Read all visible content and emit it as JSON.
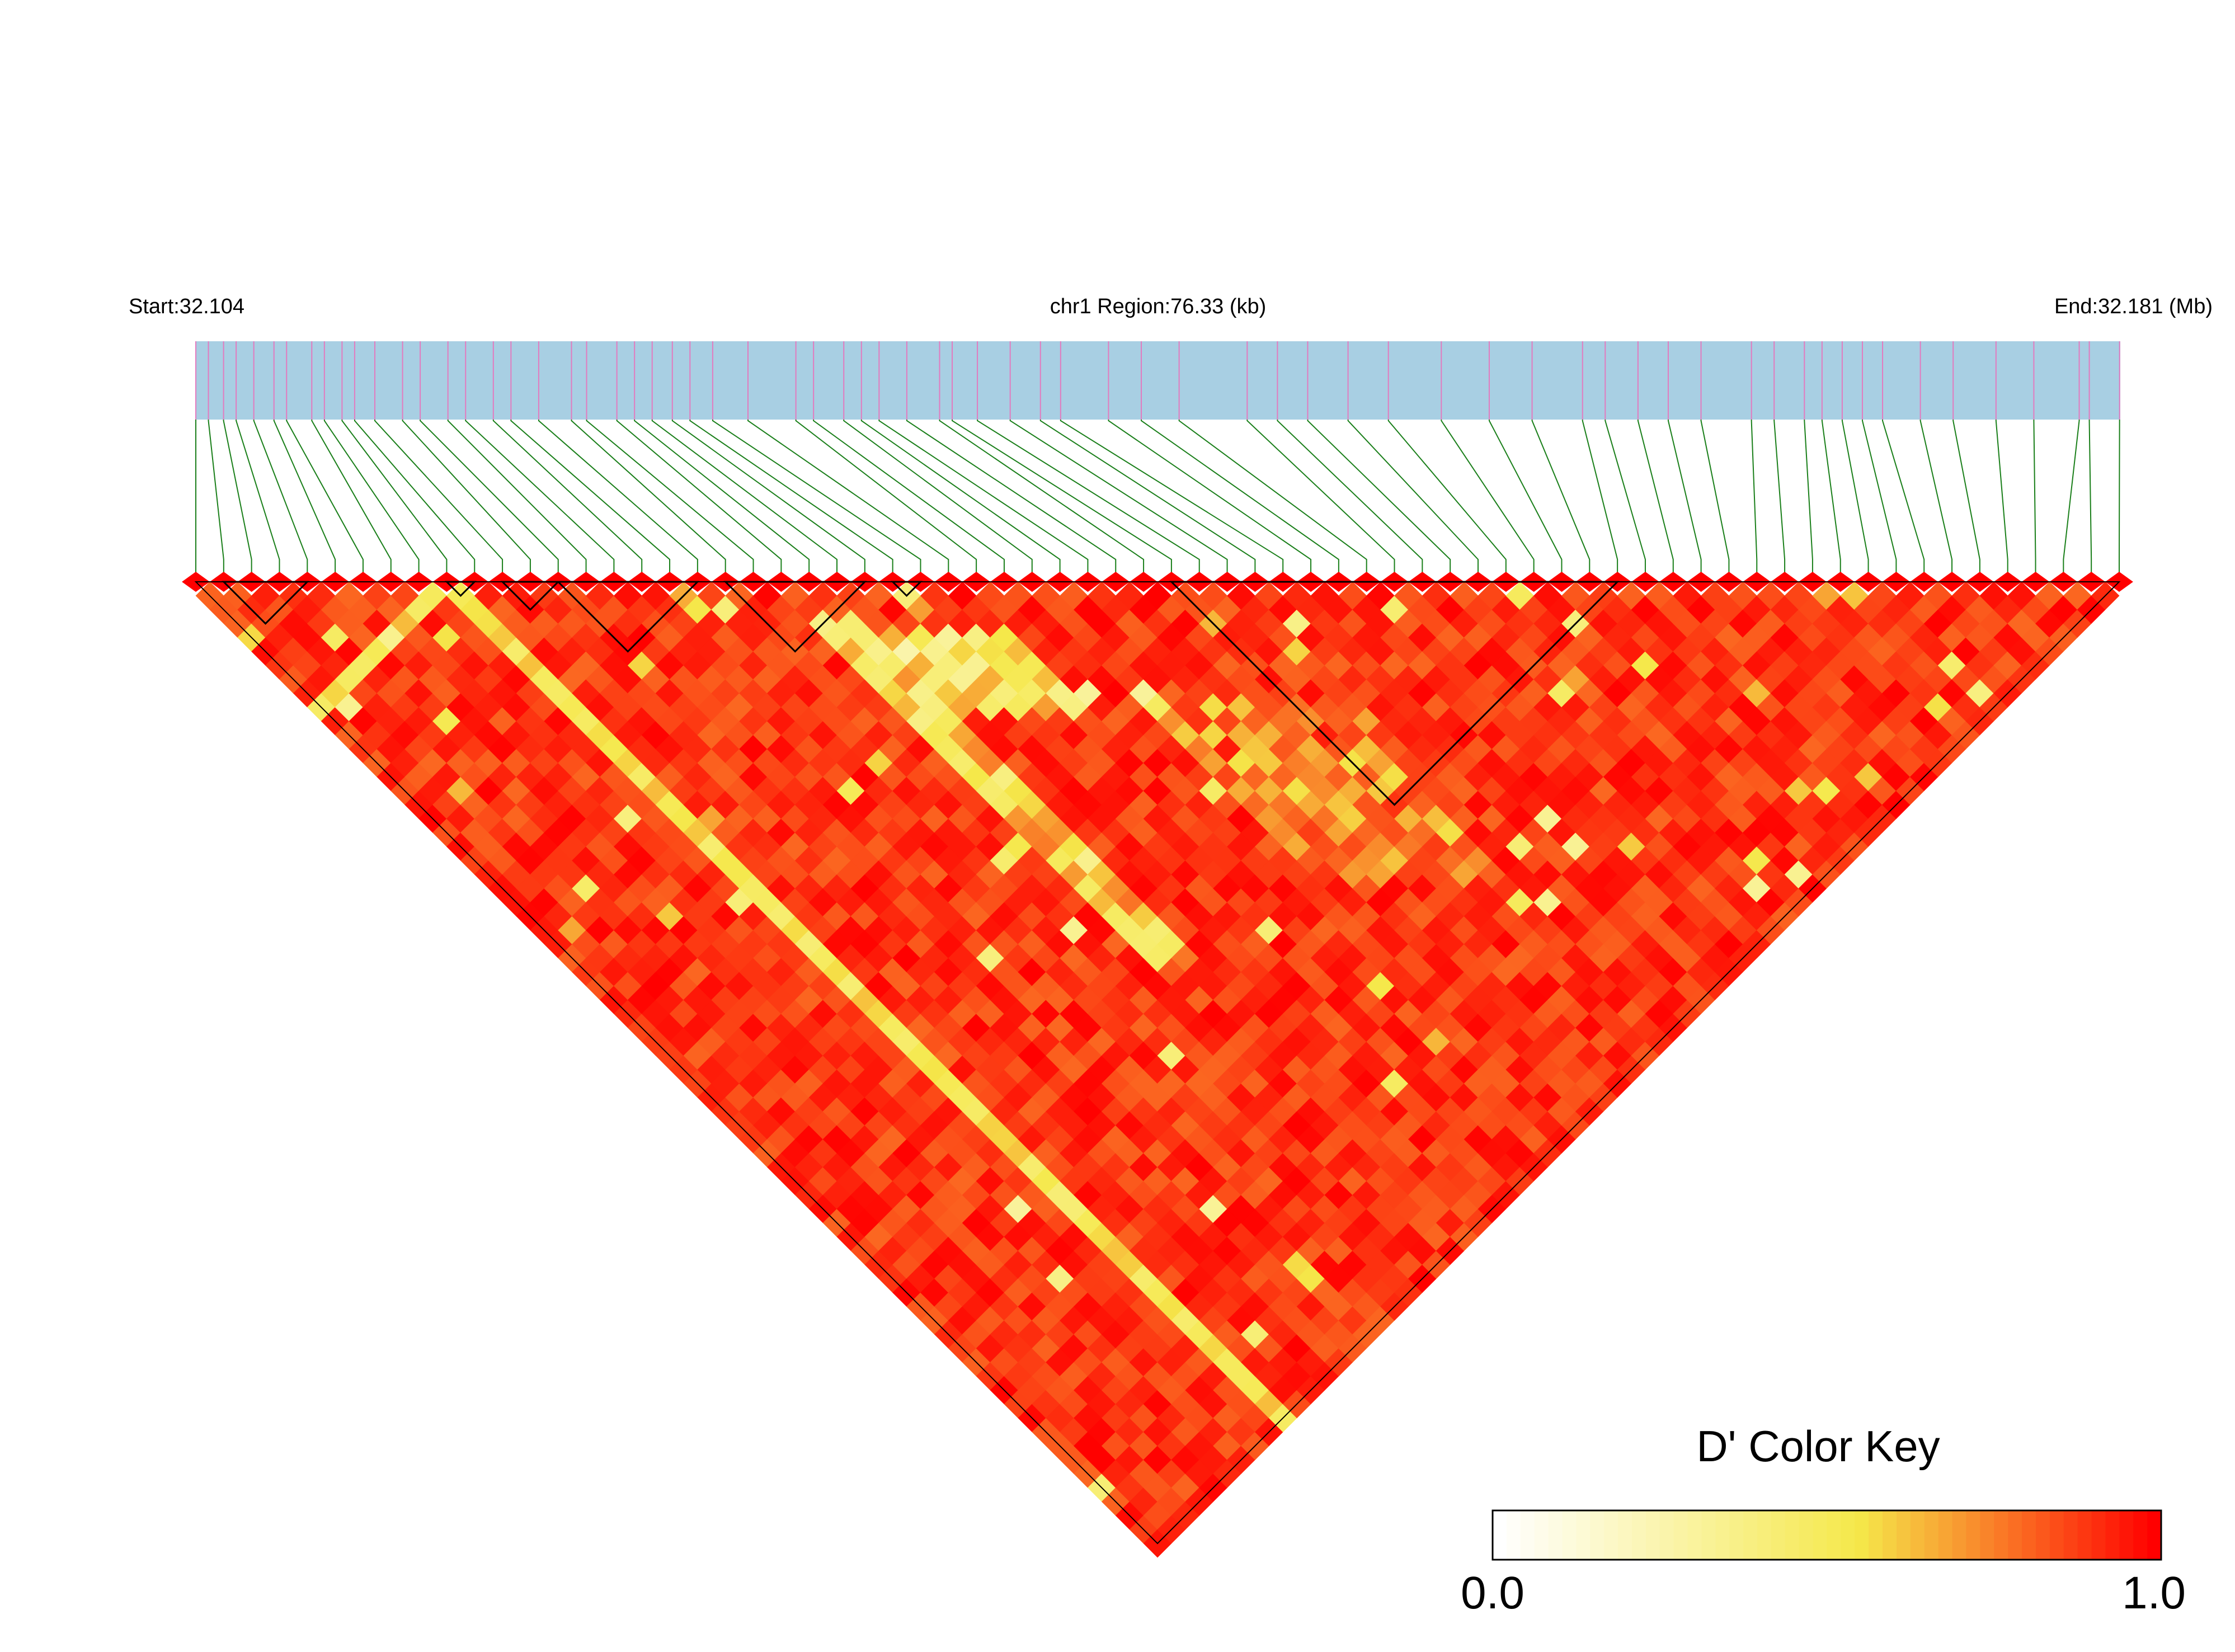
{
  "header": {
    "start_label": "Start:32.104",
    "region_label": "chr1 Region:76.33 (kb)",
    "end_label": "End:32.181 (Mb)"
  },
  "colors": {
    "track_fill": "#a8cfe3",
    "snp_tick": "#e27bbf",
    "connector": "#1a7f1a",
    "block_outline": "#000000",
    "heat_low": "#ffffff",
    "heat_mid": "#f5e84a",
    "heat_high": "#ff0000"
  },
  "legend": {
    "title": "D' Color Key",
    "min_label": "0.0",
    "max_label": "1.0"
  },
  "chart_data": {
    "type": "heatmap",
    "variant": "LD triangle (pairwise D')",
    "chromosome": "chr1",
    "region_start_mb": 32.104,
    "region_end_mb": 32.181,
    "region_length_kb": 76.33,
    "snp_count": 70,
    "snp_positions_kb": [
      0,
      1.1,
      4.6,
      5.1,
      5.8,
      7.1,
      10.0,
      10.7,
      11.8,
      13.6,
      14.9,
      18.1,
      18.9,
      20.5,
      21.9,
      23.8,
      25.7,
      27.1,
      29.5,
      31.0,
      32.3,
      33.5,
      37.5,
      39.0,
      41.7,
      45.7,
      47.3,
      51.3,
      53.0,
      55.9,
      58.4,
      59.7,
      61.7,
      62.6,
      63.8,
      65.3,
      66.1,
      66.9,
      68.4,
      71.4,
      74.7,
      75.1,
      76.3,
      0.5,
      1.6,
      2.3,
      3.1,
      3.6,
      6.3,
      8.2,
      8.9,
      12.5,
      15.5,
      16.7,
      17.4,
      19.6,
      24.5,
      26.4,
      28.2,
      30.0,
      34.3,
      36.2,
      42.9,
      44.1,
      49.4,
      55.0,
      57.2,
      64.5,
      69.7,
      72.9
    ],
    "haplotype_blocks": [
      [
        1,
        4
      ],
      [
        9,
        10
      ],
      [
        11,
        13
      ],
      [
        13,
        18
      ],
      [
        19,
        24
      ],
      [
        25,
        26
      ],
      [
        35,
        51
      ]
    ],
    "color_scale": {
      "metric": "D'",
      "min": 0.0,
      "max": 1.0,
      "stops": [
        "#ffffff",
        "#f5e84a",
        "#ff0000"
      ]
    },
    "low_ld_bands": [
      {
        "snp_offset_start": 9,
        "description": "long yellow diagonal from SNP 9"
      },
      {
        "snp_offset_start": 21,
        "description": "pale diagonal bands near SNPs 21-27"
      },
      {
        "snp_offset_start": 33,
        "description": "orange streaks near SNPs 33-40"
      }
    ]
  }
}
